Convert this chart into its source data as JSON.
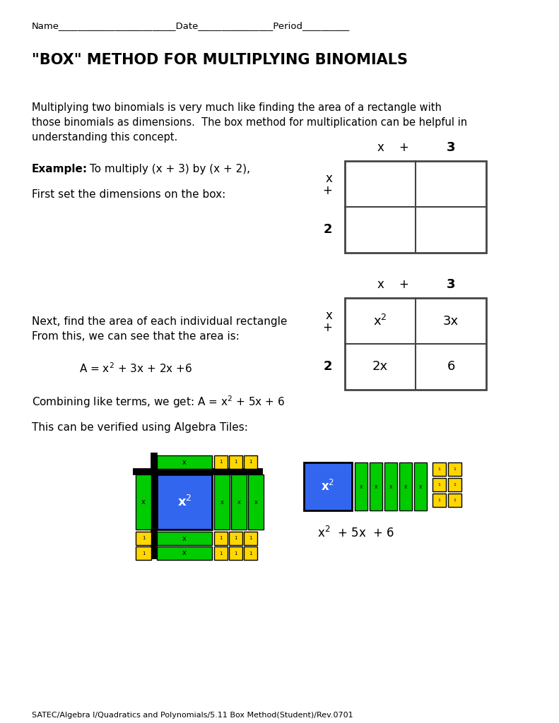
{
  "bg_color": "#ffffff",
  "title": "\"BOX\" METHOD FOR MULTIPLYING BINOMIALS",
  "name_line": "Name_________________________Date________________Period__________",
  "intro_text1": "Multiplying two binomials is very much like finding the area of a rectangle with",
  "intro_text2": "those binomials as dimensions.  The box method for multiplication can be helpful in",
  "intro_text3": "understanding this concept.",
  "example_bold": "Example:",
  "example_rest": " To multiply (x + 3) by (x + 2),",
  "first_set": "First set the dimensions on the box:",
  "next_find1": "Next, find the area of each individual rectangle",
  "next_find2": "From this, we can see that the area is:",
  "area_eq": "A = x² + 3x + 2x +6",
  "combining": "Combining like terms, we get: A = x² + 5x + 6",
  "verified": "This can be verified using Algebra Tiles:",
  "footer": "SATEC/Algebra I/Quadratics and Polynomials/5.11 Box Method(Student)/Rev.0701",
  "blue_color": "#3366EE",
  "green_color": "#00CC00",
  "yellow_color": "#FFD700",
  "black_color": "#000000",
  "grid_color": "#444444",
  "font": "DejaVu Sans"
}
